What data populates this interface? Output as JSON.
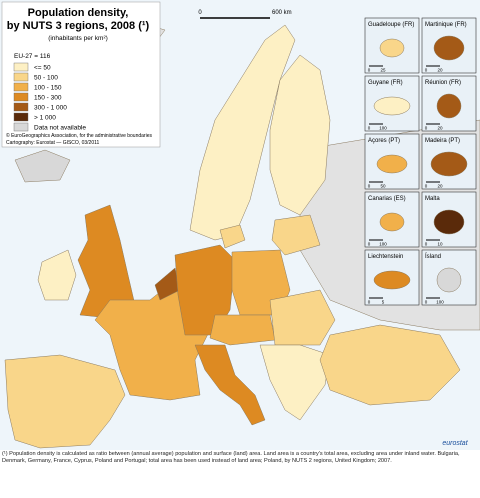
{
  "title_lines": [
    "Population density,",
    "by NUTS 3 regions, 2008 (¹)"
  ],
  "unit": "(inhabitants per km²)",
  "eu_average": "EU-27 = 116",
  "legend": [
    {
      "label": "<= 50",
      "color": "#fdf0c4"
    },
    {
      "label": "50 - 100",
      "color": "#f9d68a"
    },
    {
      "label": "100 - 150",
      "color": "#f1b04a"
    },
    {
      "label": "150 - 300",
      "color": "#dd8a22"
    },
    {
      "label": "300 - 1 000",
      "color": "#a45a17"
    },
    {
      "label": "> 1 000",
      "color": "#5a2a0a"
    },
    {
      "label": "Data not available",
      "color": "#d8d8d8"
    }
  ],
  "credits": [
    "© EuroGeographics Association, for the administrative boundaries",
    "Cartography: Eurostat — GISCO, 03/2011"
  ],
  "scale": {
    "start": "0",
    "end": "600 km"
  },
  "insets": [
    {
      "name": "Guadeloupe (FR)",
      "scale": [
        "0",
        "25"
      ]
    },
    {
      "name": "Martinique (FR)",
      "scale": [
        "0",
        "20"
      ]
    },
    {
      "name": "Guyane (FR)",
      "scale": [
        "0",
        "100"
      ]
    },
    {
      "name": "Réunion (FR)",
      "scale": [
        "0",
        "20"
      ]
    },
    {
      "name": "Açores (PT)",
      "scale": [
        "0",
        "50"
      ]
    },
    {
      "name": "Madeira (PT)",
      "scale": [
        "0",
        "20"
      ]
    },
    {
      "name": "Canarias (ES)",
      "scale": [
        "0",
        "100"
      ]
    },
    {
      "name": "Malta",
      "scale": [
        "0",
        "10"
      ]
    },
    {
      "name": "Liechtenstein",
      "scale": [
        "0",
        "5"
      ]
    },
    {
      "name": "Ísland",
      "scale": [
        "0",
        "100"
      ]
    }
  ],
  "footnote": "(¹) Population density is calculated as ratio between (annual average) population and surface (land) area. Land area is a country's total area, excluding area under inland water. Bulgaria, Denmark, Germany, France, Cyprus, Poland and Portugal; total area has been used instead of land area; Poland, by NUTS 2 regions, United Kingdom; 2007.",
  "logo": "eurostat"
}
